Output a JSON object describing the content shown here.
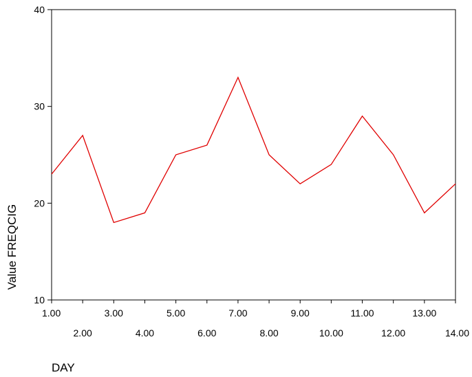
{
  "chart_data": {
    "type": "line",
    "xlabel": "DAY",
    "ylabel": "Value FREQCIG",
    "xlim": [
      1,
      14
    ],
    "ylim": [
      10,
      40
    ],
    "x_ticks": [
      "1.00",
      "2.00",
      "3.00",
      "4.00",
      "5.00",
      "6.00",
      "7.00",
      "8.00",
      "9.00",
      "10.00",
      "11.00",
      "12.00",
      "13.00",
      "14.00"
    ],
    "y_ticks": [
      "10",
      "20",
      "30",
      "40"
    ],
    "grid": false,
    "series": [
      {
        "color": "#e00000",
        "x": [
          1,
          2,
          3,
          4,
          5,
          6,
          7,
          8,
          9,
          10,
          11,
          12,
          13,
          14
        ],
        "values": [
          23,
          27,
          18,
          19,
          25,
          26,
          33,
          25,
          22,
          24,
          29,
          25,
          19,
          22
        ]
      }
    ]
  }
}
